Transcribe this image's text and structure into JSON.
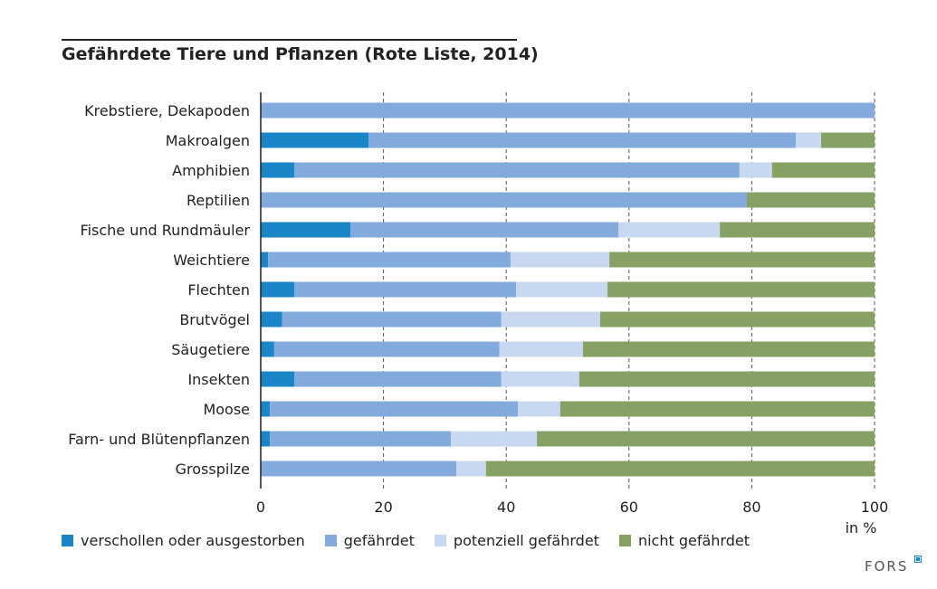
{
  "chart_data": {
    "type": "bar",
    "orientation": "horizontal-stacked",
    "title": "Gefährdete Tiere und Pflanzen (Rote Liste, 2014)",
    "xlabel": "in %",
    "xlim": [
      0,
      100
    ],
    "xticks": [
      "0",
      "20",
      "40",
      "60",
      "80",
      "100"
    ],
    "categories": [
      "Krebstiere, Dekapoden",
      "Makroalgen",
      "Amphibien",
      "Reptilien",
      "Fische und Rundmäuler",
      "Weichtiere",
      "Flechten",
      "Brutvögel",
      "Säugetiere",
      "Insekten",
      "Moose",
      "Farn- und Blütenpflanzen",
      "Grosspilze"
    ],
    "series": [
      {
        "name": "verschollen oder ausgestorben",
        "color": "#1a86c8",
        "values": [
          0,
          17.6,
          5.5,
          0,
          14.6,
          1.2,
          5.5,
          3.5,
          2.2,
          5.5,
          1.5,
          1.5,
          0
        ]
      },
      {
        "name": "gefährdet",
        "color": "#83aadc",
        "values": [
          100,
          69.6,
          72.5,
          79.2,
          43.7,
          39.5,
          36.1,
          35.7,
          36.7,
          33.7,
          40.4,
          29.5,
          31.9
        ]
      },
      {
        "name": "potenziell gefährdet",
        "color": "#c8d8f0",
        "values": [
          0,
          4.1,
          5.3,
          0,
          16.5,
          16.1,
          14.9,
          16.1,
          13.6,
          12.7,
          6.9,
          14.0,
          4.8
        ]
      },
      {
        "name": "nicht gefährdet",
        "color": "#87a064",
        "values": [
          0,
          8.7,
          16.7,
          20.8,
          25.2,
          43.2,
          43.5,
          44.7,
          47.5,
          48.1,
          51.2,
          55.0,
          63.3
        ]
      }
    ],
    "grid": "vertical-dashed",
    "legend": "bottom"
  },
  "logo": "FORS"
}
